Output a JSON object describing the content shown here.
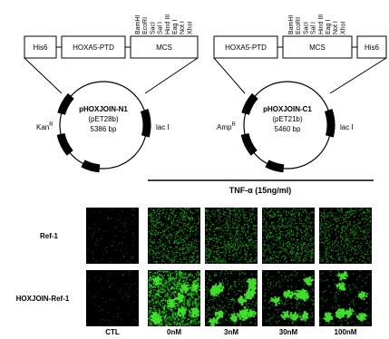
{
  "left_map": {
    "tags": [
      "His6",
      "HOXA5-PTD",
      "MCS"
    ],
    "sites": [
      "BamHI",
      "EcoRI",
      "SacI",
      "Sal I",
      "Hind III",
      "Eag I",
      "Not I",
      "XhoI"
    ],
    "name": "pHOXJOIN-N1",
    "vector": "(pET28b)",
    "size": "5386 bp",
    "marker": {
      "text": "Kan",
      "sup": "R"
    },
    "lac": "lac I"
  },
  "right_map": {
    "tags": [
      "HOXA5-PTD",
      "MCS",
      "His6"
    ],
    "sites": [
      "BamHI",
      "EcoRI",
      "SacI",
      "Sal I",
      "Hind III",
      "Eag I",
      "Not I",
      "XhoI"
    ],
    "name": "pHOXJOIN-C1",
    "vector": "(pET21b)",
    "size": "5460 bp",
    "marker": {
      "text": "Amp",
      "sup": "R"
    },
    "lac": "lac I"
  },
  "treatment": "TNF-α (15ng/ml)",
  "rows": [
    "Ref-1",
    "HOXJOIN-Ref-1"
  ],
  "columns": [
    "CTL",
    "0nM",
    "3nM",
    "30nM",
    "100nM"
  ]
}
